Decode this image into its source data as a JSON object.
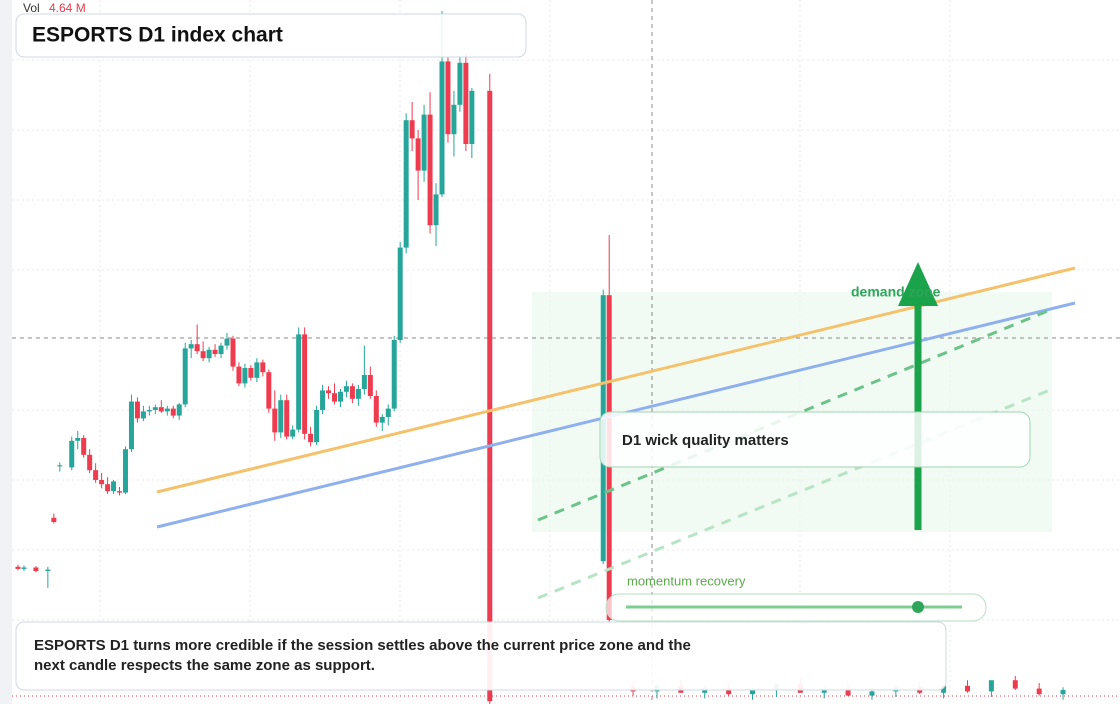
{
  "chart_data": {
    "type": "candlestick",
    "title": "ESPORTS D1 index chart",
    "volume_label": "Vol",
    "volume_text": "4.64 M",
    "annotations": [
      "demand zone",
      "D1 wick quality matters",
      "momentum recovery"
    ],
    "caption": "ESPORTS D1 turns more credible if the session settles above the current price zone and the next candle respects the same zone as support.",
    "up_color": "#26a69a",
    "down_color": "#ef3b4f",
    "xlim": [
      0,
      177
    ],
    "ylim": [
      0,
      100
    ],
    "x": [
      0,
      1,
      3,
      5,
      6,
      7,
      9,
      10,
      11,
      12,
      13,
      14,
      15,
      16,
      17,
      18,
      19,
      20,
      21,
      22,
      23,
      24,
      25,
      26,
      27,
      28,
      29,
      30,
      31,
      32,
      33,
      34,
      35,
      36,
      37,
      38,
      39,
      40,
      41,
      42,
      43,
      44,
      45,
      46,
      47,
      48,
      49,
      50,
      51,
      52,
      53,
      54,
      55,
      56,
      57,
      58,
      59,
      60,
      61,
      62,
      63,
      64,
      65,
      66,
      67,
      68,
      69,
      70,
      71,
      72,
      73,
      74,
      75,
      76,
      79,
      98,
      99,
      103,
      107,
      111,
      115,
      119,
      123,
      127,
      131,
      135,
      139,
      143,
      147,
      151,
      155,
      159,
      163,
      167,
      171,
      175
    ],
    "open": [
      19.6,
      19.3,
      19.5,
      19.0,
      26.6,
      34.0,
      33.8,
      37.6,
      38.0,
      35.6,
      33.4,
      32.0,
      31.4,
      30.4,
      30.4,
      30.2,
      36.4,
      43.2,
      40.8,
      41.8,
      42.0,
      42.4,
      41.8,
      42.2,
      41.2,
      42.8,
      50.8,
      51.4,
      50.4,
      49.4,
      50.6,
      50.0,
      51.2,
      52.2,
      48.2,
      45.8,
      48.0,
      46.6,
      48.8,
      47.4,
      42.2,
      38.8,
      43.4,
      38.2,
      39.2,
      52.8,
      38.6,
      37.4,
      42.0,
      44.8,
      44.4,
      43.2,
      44.6,
      45.4,
      43.6,
      45.0,
      47.0,
      44.0,
      40.2,
      41.0,
      42.2,
      52.0,
      65.2,
      83.4,
      80.8,
      76.2,
      84.2,
      68.4,
      72.8,
      91.8,
      81.4,
      85.6,
      91.6,
      80.0,
      87.6,
      20.4,
      58.4,
      2.4,
      1.8,
      2.6,
      1.6,
      2.2,
      1.4,
      2.0,
      2.8,
      1.6,
      2.2,
      1.2,
      1.8,
      2.4,
      1.6,
      2.6,
      1.8,
      3.4,
      2.2,
      1.4
    ],
    "high": [
      19.9,
      19.8,
      19.7,
      19.6,
      27.2,
      34.5,
      38.2,
      39.0,
      38.4,
      36.4,
      34.4,
      33.0,
      32.4,
      32.0,
      31.0,
      36.8,
      44.2,
      43.8,
      42.6,
      42.6,
      42.8,
      43.4,
      42.6,
      42.6,
      43.0,
      51.6,
      52.0,
      54.2,
      51.8,
      51.0,
      51.4,
      51.6,
      53.0,
      52.6,
      48.8,
      48.6,
      48.4,
      49.4,
      49.2,
      47.8,
      44.8,
      44.2,
      44.2,
      39.8,
      53.8,
      53.8,
      39.6,
      42.6,
      45.6,
      45.4,
      45.8,
      45.0,
      46.2,
      45.8,
      45.6,
      51.2,
      48.2,
      44.8,
      41.4,
      42.8,
      52.6,
      66.0,
      84.4,
      86.0,
      82.0,
      85.6,
      87.4,
      74.4,
      99.0,
      92.4,
      87.6,
      92.6,
      93.0,
      88.0,
      90.0,
      59.2,
      67.0,
      3.2,
      2.8,
      3.4,
      2.6,
      3.0,
      2.4,
      3.0,
      3.6,
      2.6,
      3.0,
      2.0,
      2.8,
      3.2,
      2.6,
      3.4,
      2.8,
      4.0,
      3.0,
      2.4
    ],
    "low": [
      19.1,
      19.0,
      18.8,
      16.6,
      25.8,
      33.2,
      33.4,
      36.4,
      35.2,
      33.0,
      31.6,
      30.8,
      30.0,
      30.0,
      29.8,
      30.0,
      36.0,
      40.2,
      40.4,
      41.2,
      41.4,
      41.6,
      41.2,
      40.8,
      40.6,
      42.4,
      49.4,
      50.0,
      49.0,
      48.8,
      49.6,
      49.4,
      50.6,
      47.6,
      45.4,
      45.2,
      46.2,
      46.0,
      46.8,
      41.6,
      37.6,
      38.0,
      37.8,
      37.8,
      38.8,
      37.8,
      36.8,
      37.0,
      41.4,
      43.6,
      42.8,
      42.4,
      43.8,
      43.0,
      42.6,
      44.2,
      43.6,
      39.6,
      39.0,
      39.8,
      41.8,
      51.6,
      64.4,
      79.0,
      72.0,
      74.6,
      67.2,
      65.4,
      72.4,
      80.2,
      78.2,
      84.6,
      79.0,
      78.0,
      0.0,
      20.0,
      11.4,
      1.2,
      0.8,
      1.6,
      0.8,
      1.2,
      0.6,
      1.0,
      1.8,
      0.8,
      1.2,
      0.6,
      1.0,
      1.4,
      0.8,
      1.6,
      1.0,
      2.0,
      1.2,
      0.6
    ],
    "close": [
      19.3,
      19.5,
      19.0,
      19.2,
      26.0,
      34.1,
      37.6,
      38.0,
      35.6,
      33.4,
      32.0,
      31.4,
      30.4,
      31.8,
      30.2,
      36.4,
      43.2,
      40.8,
      41.8,
      42.0,
      42.4,
      41.8,
      42.2,
      41.2,
      42.8,
      50.8,
      51.4,
      50.4,
      49.4,
      50.6,
      50.0,
      51.2,
      52.2,
      48.2,
      45.8,
      48.0,
      46.6,
      48.8,
      47.4,
      42.2,
      38.8,
      43.4,
      38.2,
      39.2,
      52.8,
      38.6,
      37.4,
      42.0,
      44.8,
      44.4,
      43.2,
      44.6,
      45.4,
      43.6,
      45.0,
      47.0,
      44.0,
      40.2,
      41.0,
      42.2,
      52.0,
      65.2,
      83.4,
      80.8,
      76.2,
      84.2,
      68.4,
      72.8,
      91.8,
      81.4,
      85.6,
      91.6,
      80.0,
      87.6,
      0.4,
      58.4,
      12.0,
      1.8,
      2.6,
      1.6,
      2.2,
      1.4,
      2.0,
      2.8,
      1.6,
      2.2,
      1.2,
      1.8,
      2.4,
      1.6,
      2.6,
      1.8,
      3.4,
      2.2,
      1.4,
      2.0
    ]
  }
}
